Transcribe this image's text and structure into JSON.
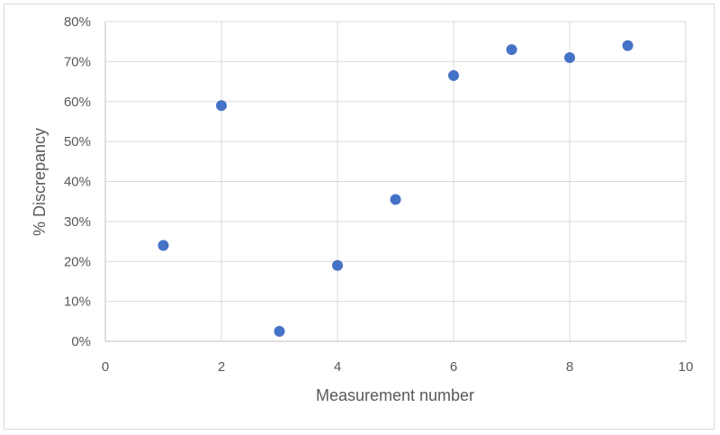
{
  "chart_data": {
    "type": "scatter",
    "title": "",
    "xlabel": "Measurement number",
    "ylabel": "% Discrepancy",
    "xlim": [
      0,
      10
    ],
    "ylim": [
      0,
      0.8
    ],
    "x_ticks": [
      0,
      2,
      4,
      6,
      8,
      10
    ],
    "y_ticks": [
      0,
      0.1,
      0.2,
      0.3,
      0.4,
      0.5,
      0.6,
      0.7,
      0.8
    ],
    "x_tick_labels": [
      "0",
      "2",
      "4",
      "6",
      "8",
      "10"
    ],
    "y_tick_labels": [
      "0%",
      "10%",
      "20%",
      "30%",
      "40%",
      "50%",
      "60%",
      "70%",
      "80%"
    ],
    "grid": true,
    "legend": "none",
    "point_color": "#4472c4",
    "series": [
      {
        "x": [
          1,
          2,
          3,
          4,
          5,
          6,
          7,
          8,
          9
        ],
        "y": [
          0.24,
          0.59,
          0.025,
          0.19,
          0.355,
          0.665,
          0.73,
          0.71,
          0.74
        ]
      }
    ]
  }
}
